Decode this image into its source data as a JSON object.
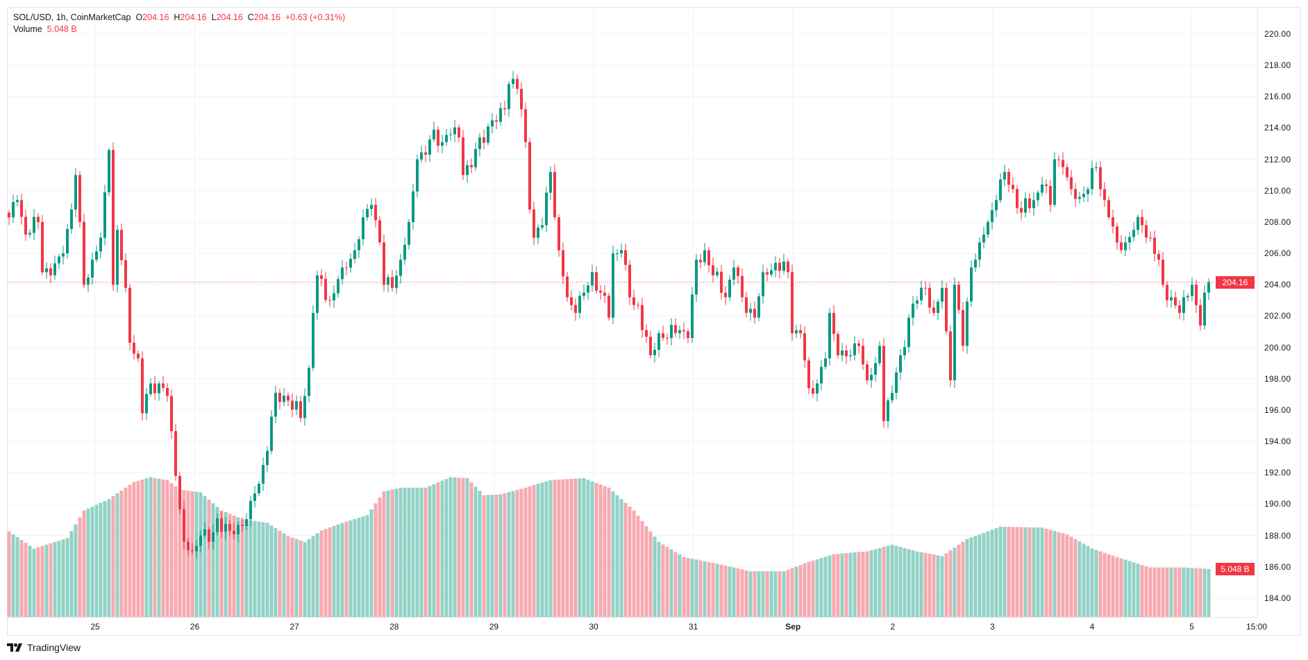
{
  "legend": {
    "symbol": "SOL/USD, 1h, CoinMarketCap",
    "o_label": "O",
    "o": "204.16",
    "h_label": "H",
    "h": "204.16",
    "l_label": "L",
    "l": "204.16",
    "c_label": "C",
    "c": "204.16",
    "change": "+0.63 (+0.31%)",
    "volume_label": "Volume",
    "volume": "5.048 B"
  },
  "current_price_tag": "204.16",
  "current_volume_tag": "5.048 B",
  "brand": "TradingView",
  "colors": {
    "up": "#089981",
    "down": "#f23645",
    "up_vol": "#92d2c6",
    "down_vol": "#f7a9b0"
  },
  "chart_data": {
    "type": "candlestick",
    "title": "SOL/USD, 1h, CoinMarketCap",
    "ylim": [
      183,
      221.5
    ],
    "y_ticks": [
      "220.00",
      "218.00",
      "216.00",
      "214.00",
      "212.00",
      "210.00",
      "208.00",
      "206.00",
      "204.00",
      "202.00",
      "200.00",
      "198.00",
      "196.00",
      "194.00",
      "192.00",
      "190.00",
      "188.00",
      "186.00",
      "184.00"
    ],
    "x_ticks": [
      {
        "label": "25",
        "bold": false
      },
      {
        "label": "26",
        "bold": false
      },
      {
        "label": "27",
        "bold": false
      },
      {
        "label": "28",
        "bold": false
      },
      {
        "label": "29",
        "bold": false
      },
      {
        "label": "30",
        "bold": false
      },
      {
        "label": "31",
        "bold": false
      },
      {
        "label": "Sep",
        "bold": true
      },
      {
        "label": "2",
        "bold": false
      },
      {
        "label": "3",
        "bold": false
      },
      {
        "label": "4",
        "bold": false
      },
      {
        "label": "5",
        "bold": false
      },
      {
        "label": "15:00",
        "bold": false
      }
    ],
    "candle_count": 289,
    "close_trace_hour_price": [
      [
        0,
        208.3
      ],
      [
        2,
        209.4
      ],
      [
        4,
        207.2
      ],
      [
        7,
        208
      ],
      [
        8,
        204.8
      ],
      [
        10,
        204.6
      ],
      [
        13,
        206
      ],
      [
        15,
        208.8
      ],
      [
        16,
        211
      ],
      [
        18,
        204
      ],
      [
        20,
        205.6
      ],
      [
        22,
        207
      ],
      [
        24,
        212.6
      ],
      [
        25,
        204
      ],
      [
        26,
        207.5
      ],
      [
        28,
        203.8
      ],
      [
        29,
        200.3
      ],
      [
        31,
        199.3
      ],
      [
        32,
        195.8
      ],
      [
        34,
        197.7
      ],
      [
        36,
        197.7
      ],
      [
        38,
        196.9
      ],
      [
        40,
        191.8
      ],
      [
        42,
        187.6
      ],
      [
        44,
        187
      ],
      [
        46,
        188
      ],
      [
        48,
        187.6
      ],
      [
        50,
        189.1
      ],
      [
        53,
        188.3
      ],
      [
        56,
        188.6
      ],
      [
        58,
        190.2
      ],
      [
        60,
        191.3
      ],
      [
        62,
        193.4
      ],
      [
        64,
        197.1
      ],
      [
        67,
        196.6
      ],
      [
        70,
        195.5
      ],
      [
        72,
        198.7
      ],
      [
        73,
        202.2
      ],
      [
        74,
        204.6
      ],
      [
        77,
        203
      ],
      [
        80,
        205.1
      ],
      [
        83,
        206.2
      ],
      [
        85,
        208.3
      ],
      [
        87,
        209.1
      ],
      [
        89,
        206.7
      ],
      [
        90,
        204
      ],
      [
        92,
        203.8
      ],
      [
        94,
        205.6
      ],
      [
        96,
        208
      ],
      [
        98,
        212
      ],
      [
        100,
        212.3
      ],
      [
        102,
        213.9
      ],
      [
        104,
        213.1
      ],
      [
        106,
        213.6
      ],
      [
        108,
        213.4
      ],
      [
        109,
        211
      ],
      [
        111,
        211.5
      ],
      [
        113,
        213.4
      ],
      [
        115,
        214.1
      ],
      [
        117,
        214.4
      ],
      [
        119,
        215.2
      ],
      [
        120,
        216.8
      ],
      [
        122,
        216.5
      ],
      [
        123,
        215.2
      ],
      [
        124,
        213.1
      ],
      [
        125,
        208.8
      ],
      [
        126,
        207
      ],
      [
        128,
        207.8
      ],
      [
        130,
        211.2
      ],
      [
        131,
        208.3
      ],
      [
        132,
        206.2
      ],
      [
        134,
        203.2
      ],
      [
        136,
        202.2
      ],
      [
        138,
        203.5
      ],
      [
        140,
        204.8
      ],
      [
        142,
        203.5
      ],
      [
        144,
        201.9
      ],
      [
        145,
        206
      ],
      [
        147,
        206.2
      ],
      [
        149,
        203.2
      ],
      [
        151,
        202.7
      ],
      [
        154,
        199.5
      ],
      [
        156,
        200.9
      ],
      [
        158,
        200.6
      ],
      [
        161,
        201.1
      ],
      [
        163,
        200.6
      ],
      [
        165,
        205.6
      ],
      [
        167,
        206.2
      ],
      [
        169,
        204.6
      ],
      [
        172,
        203.2
      ],
      [
        174,
        205.1
      ],
      [
        176,
        203.2
      ],
      [
        179,
        201.9
      ],
      [
        181,
        204.8
      ],
      [
        184,
        205.4
      ],
      [
        187,
        204.8
      ],
      [
        188,
        200.9
      ],
      [
        190,
        200.9
      ],
      [
        192,
        197.4
      ],
      [
        194,
        197.7
      ],
      [
        196,
        199.3
      ],
      [
        197,
        202.2
      ],
      [
        199,
        199.5
      ],
      [
        202,
        199.5
      ],
      [
        204,
        200.1
      ],
      [
        206,
        197.9
      ],
      [
        208,
        199
      ],
      [
        209,
        200.1
      ],
      [
        210,
        195.3
      ],
      [
        212,
        197.1
      ],
      [
        214,
        199.5
      ],
      [
        216,
        201.9
      ],
      [
        218,
        203
      ],
      [
        220,
        203.8
      ],
      [
        222,
        202.2
      ],
      [
        224,
        203.8
      ],
      [
        226,
        197.9
      ],
      [
        227,
        204
      ],
      [
        229,
        200.1
      ],
      [
        231,
        205.1
      ],
      [
        233,
        206.7
      ],
      [
        235,
        208
      ],
      [
        237,
        209.4
      ],
      [
        239,
        211.2
      ],
      [
        241,
        210.1
      ],
      [
        243,
        208.6
      ],
      [
        246,
        209.4
      ],
      [
        248,
        210.4
      ],
      [
        250,
        209.1
      ],
      [
        251,
        212
      ],
      [
        253,
        211.5
      ],
      [
        255,
        210.1
      ],
      [
        257,
        209.6
      ],
      [
        259,
        210.1
      ],
      [
        261,
        211.5
      ],
      [
        262,
        210.1
      ],
      [
        264,
        208.3
      ],
      [
        266,
        206.7
      ],
      [
        268,
        206.7
      ],
      [
        270,
        207.5
      ],
      [
        272,
        207.8
      ],
      [
        274,
        207
      ],
      [
        276,
        205.6
      ],
      [
        277,
        204
      ],
      [
        279,
        203.2
      ],
      [
        281,
        202.2
      ],
      [
        282,
        203.2
      ],
      [
        284,
        204
      ],
      [
        285,
        202.7
      ],
      [
        286,
        201.4
      ],
      [
        287,
        203.5
      ],
      [
        288,
        204.16
      ]
    ],
    "volume_trace_hour_billions": [
      [
        0,
        9.0
      ],
      [
        6,
        7.2
      ],
      [
        14,
        8.3
      ],
      [
        18,
        11.2
      ],
      [
        24,
        12.4
      ],
      [
        30,
        14.2
      ],
      [
        34,
        14.7
      ],
      [
        38,
        14.4
      ],
      [
        41,
        13.4
      ],
      [
        46,
        13.1
      ],
      [
        51,
        11.2
      ],
      [
        56,
        10.3
      ],
      [
        62,
        9.9
      ],
      [
        67,
        8.5
      ],
      [
        71,
        7.9
      ],
      [
        75,
        9.1
      ],
      [
        80,
        9.9
      ],
      [
        86,
        10.7
      ],
      [
        90,
        13.2
      ],
      [
        94,
        13.6
      ],
      [
        100,
        13.6
      ],
      [
        106,
        14.7
      ],
      [
        110,
        14.6
      ],
      [
        114,
        12.8
      ],
      [
        118,
        12.9
      ],
      [
        124,
        13.6
      ],
      [
        130,
        14.4
      ],
      [
        138,
        14.6
      ],
      [
        144,
        13.6
      ],
      [
        150,
        11.2
      ],
      [
        156,
        7.9
      ],
      [
        162,
        6.3
      ],
      [
        170,
        5.6
      ],
      [
        178,
        4.8
      ],
      [
        186,
        4.8
      ],
      [
        192,
        5.8
      ],
      [
        198,
        6.6
      ],
      [
        206,
        6.9
      ],
      [
        212,
        7.6
      ],
      [
        218,
        6.9
      ],
      [
        224,
        6.4
      ],
      [
        230,
        8.2
      ],
      [
        238,
        9.5
      ],
      [
        248,
        9.4
      ],
      [
        254,
        8.7
      ],
      [
        260,
        7.2
      ],
      [
        266,
        6.3
      ],
      [
        274,
        5.2
      ],
      [
        282,
        5.2
      ],
      [
        288,
        5.048
      ]
    ],
    "last_price": 204.16
  }
}
